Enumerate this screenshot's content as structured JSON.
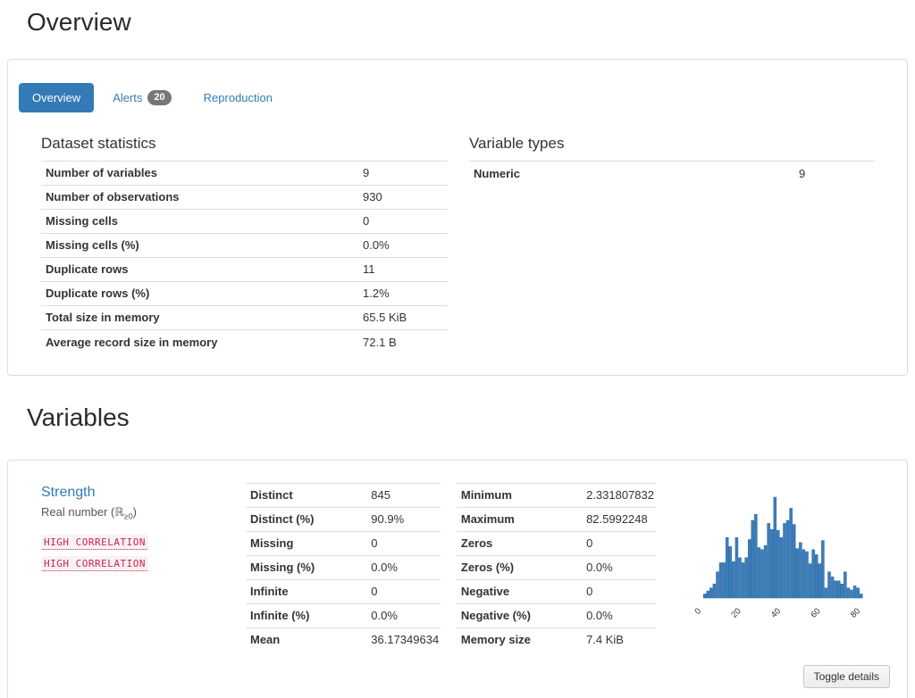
{
  "page": {
    "overview_title": "Overview",
    "variables_title": "Variables"
  },
  "tabs": [
    {
      "label": "Overview",
      "active": true
    },
    {
      "label": "Alerts",
      "badge": "20",
      "active": false
    },
    {
      "label": "Reproduction",
      "active": false
    }
  ],
  "dataset_statistics": {
    "title": "Dataset statistics",
    "rows": [
      [
        "Number of variables",
        "9"
      ],
      [
        "Number of observations",
        "930"
      ],
      [
        "Missing cells",
        "0"
      ],
      [
        "Missing cells (%)",
        "0.0%"
      ],
      [
        "Duplicate rows",
        "11"
      ],
      [
        "Duplicate rows (%)",
        "1.2%"
      ],
      [
        "Total size in memory",
        "65.5 KiB"
      ],
      [
        "Average record size in memory",
        "72.1 B"
      ]
    ]
  },
  "variable_types": {
    "title": "Variable types",
    "rows": [
      [
        "Numeric",
        "9"
      ]
    ]
  },
  "variable": {
    "name": "Strength",
    "type_prefix": "Real number (ℝ",
    "type_subscript": "≥0",
    "type_suffix": ")",
    "alerts": [
      "HIGH CORRELATION",
      "HIGH CORRELATION"
    ],
    "stats_left": [
      [
        "Distinct",
        "845"
      ],
      [
        "Distinct (%)",
        "90.9%"
      ],
      [
        "Missing",
        "0"
      ],
      [
        "Missing (%)",
        "0.0%"
      ],
      [
        "Infinite",
        "0"
      ],
      [
        "Infinite (%)",
        "0.0%"
      ],
      [
        "Mean",
        "36.17349634"
      ]
    ],
    "stats_right": [
      [
        "Minimum",
        "2.331807832"
      ],
      [
        "Maximum",
        "82.5992248"
      ],
      [
        "Zeros",
        "0"
      ],
      [
        "Zeros (%)",
        "0.0%"
      ],
      [
        "Negative",
        "0"
      ],
      [
        "Negative (%)",
        "0.0%"
      ],
      [
        "Memory size",
        "7.4 KiB"
      ]
    ],
    "toggle_button_label": "Toggle details"
  },
  "chart_data": {
    "type": "bar",
    "subtype": "histogram",
    "title": "Histogram of Strength",
    "x_min": 2.331807832,
    "x_max": 82.5992248,
    "bins": 50,
    "xticks": [
      0,
      20,
      40,
      60,
      80
    ],
    "tick_rotation_deg": 45,
    "ylabel": "",
    "xlabel": "",
    "grid": false,
    "legend": "none",
    "bar_heights_relative": [
      4,
      7,
      10,
      14,
      26,
      35,
      35,
      60,
      51,
      36,
      60,
      40,
      35,
      40,
      58,
      77,
      83,
      50,
      48,
      52,
      74,
      68,
      100,
      67,
      60,
      74,
      77,
      89,
      73,
      49,
      55,
      48,
      46,
      34,
      48,
      43,
      34,
      57,
      10,
      26,
      21,
      17,
      17,
      14,
      26,
      10,
      8,
      12,
      10,
      4
    ],
    "bar_color": "#3d7db9",
    "bar_edge_color": "#2a6aa5"
  },
  "colors": {
    "primary_blue": "#337ab7",
    "badge_gray": "#777777",
    "alert_code_red": "#c7254e",
    "alert_code_bg": "#f9f2f4",
    "table_border": "#dddddd",
    "text": "#333333"
  }
}
